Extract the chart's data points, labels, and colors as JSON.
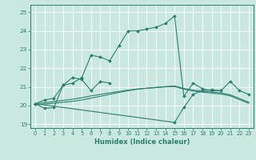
{
  "title": "",
  "xlabel": "Humidex (Indice chaleur)",
  "xlim": [
    -0.5,
    23.5
  ],
  "ylim": [
    18.8,
    25.4
  ],
  "yticks": [
    19,
    20,
    21,
    22,
    23,
    24,
    25
  ],
  "xticks": [
    0,
    1,
    2,
    3,
    4,
    5,
    6,
    7,
    8,
    9,
    10,
    11,
    12,
    13,
    14,
    15,
    16,
    17,
    18,
    19,
    20,
    21,
    22,
    23
  ],
  "bg_color": "#c8e8e0",
  "plot_bg_color": "#c8e8e0",
  "line_color": "#2d7f6e",
  "grid_color": "#ffffff",
  "series": [
    {
      "x": [
        0,
        1,
        2,
        3,
        4,
        5,
        6,
        7,
        8,
        9,
        10,
        11,
        12,
        13,
        14,
        15,
        16,
        17,
        18,
        19,
        20,
        21,
        22,
        23
      ],
      "y": [
        20.1,
        20.3,
        20.4,
        21.1,
        21.2,
        21.5,
        22.7,
        22.6,
        22.4,
        23.2,
        24.0,
        24.0,
        24.1,
        24.2,
        24.4,
        24.8,
        20.5,
        21.2,
        20.9,
        20.8,
        20.8,
        21.3,
        20.8,
        20.6
      ],
      "marker": true
    },
    {
      "x": [
        0,
        1,
        2,
        3,
        4,
        5,
        6,
        7,
        8
      ],
      "y": [
        20.1,
        19.85,
        19.9,
        21.1,
        21.5,
        21.4,
        20.8,
        21.3,
        21.2
      ],
      "marker": true
    },
    {
      "x": [
        0,
        15,
        16,
        17,
        18,
        19,
        20
      ],
      "y": [
        20.1,
        19.1,
        19.9,
        20.6,
        20.8,
        20.85,
        20.8
      ],
      "marker": true
    },
    {
      "x": [
        0,
        1,
        2,
        3,
        4,
        5,
        6,
        7,
        8,
        9,
        10,
        11,
        12,
        13,
        14,
        15,
        16,
        17,
        18,
        19,
        20,
        21,
        22,
        23
      ],
      "y": [
        20.1,
        20.15,
        20.22,
        20.28,
        20.34,
        20.42,
        20.52,
        20.6,
        20.68,
        20.76,
        20.83,
        20.89,
        20.93,
        20.97,
        21.0,
        21.02,
        20.88,
        20.78,
        20.72,
        20.67,
        20.62,
        20.52,
        20.32,
        20.12
      ],
      "marker": false
    },
    {
      "x": [
        0,
        1,
        2,
        3,
        4,
        5,
        6,
        7,
        8,
        9,
        10,
        11,
        12,
        13,
        14,
        15,
        16,
        17,
        18,
        19,
        20,
        21,
        22,
        23
      ],
      "y": [
        20.05,
        20.08,
        20.13,
        20.18,
        20.23,
        20.3,
        20.4,
        20.5,
        20.6,
        20.7,
        20.8,
        20.88,
        20.93,
        20.97,
        21.02,
        21.05,
        20.92,
        20.83,
        20.78,
        20.73,
        20.68,
        20.58,
        20.38,
        20.18
      ],
      "marker": false
    }
  ]
}
